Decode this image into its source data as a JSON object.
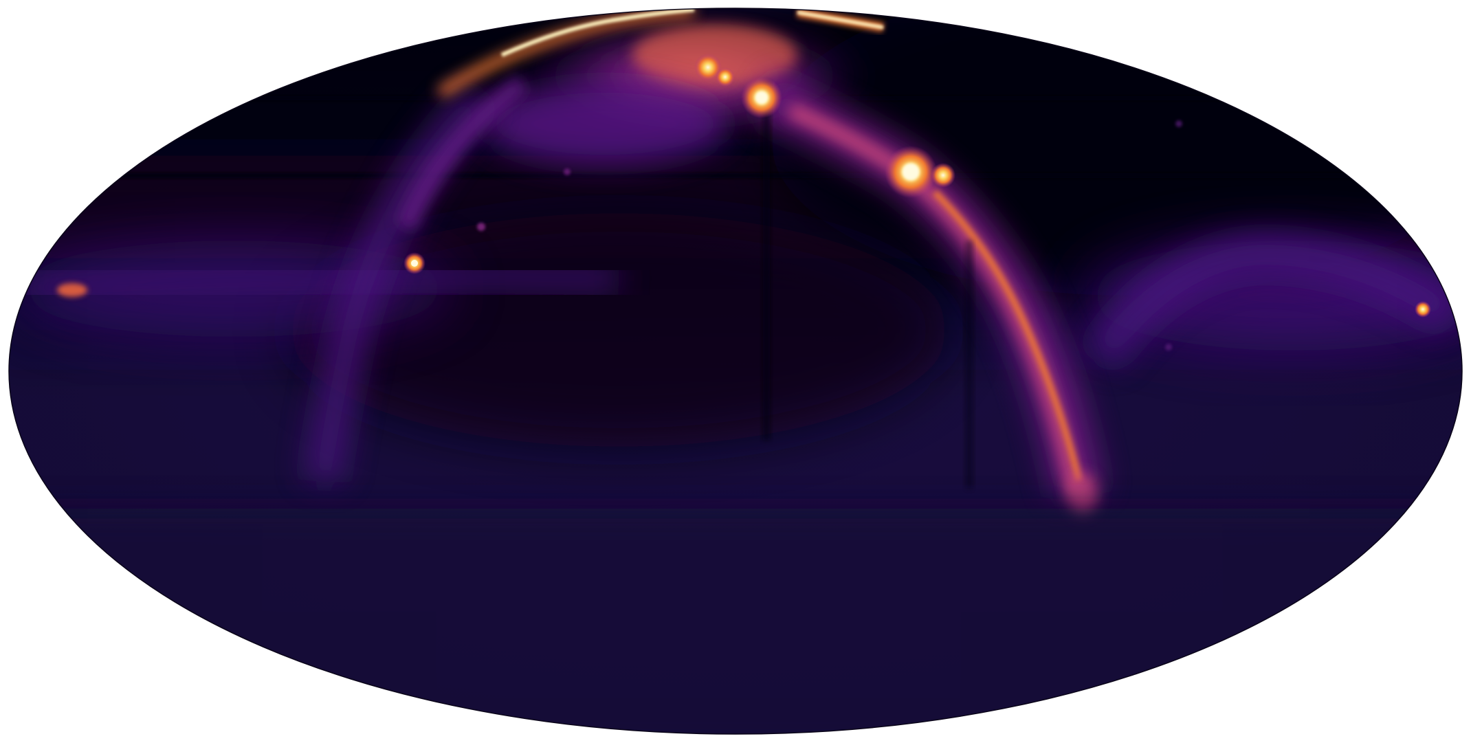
{
  "figure": {
    "projection": "mollweide",
    "colormap": "inferno",
    "colorbar": false,
    "graticule": false,
    "title": "",
    "colors": {
      "background": "#ffffff",
      "map_base": "#150c38",
      "dark_region": "#06030f",
      "glow_purple": "#4b1178",
      "glow_violet": "#7a1e8a",
      "glow_magenta": "#b6357a",
      "glow_orange": "#f07830",
      "glow_yellow": "#fcd15b",
      "glow_white": "#fff7c8"
    }
  }
}
